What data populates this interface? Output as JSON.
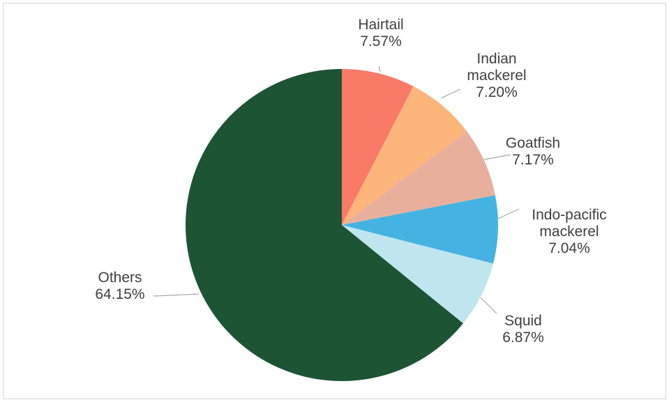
{
  "chart_data": {
    "type": "pie",
    "title": "",
    "start_angle_deg": 0,
    "direction": "clockwise",
    "slices": [
      {
        "label": [
          "Hairtail"
        ],
        "value": 7.57,
        "value_text": "7.57%",
        "color": "#f97a66"
      },
      {
        "label": [
          "Indian",
          "mackerel"
        ],
        "value": 7.2,
        "value_text": "7.20%",
        "color": "#fcb57a"
      },
      {
        "label": [
          "Goatfish"
        ],
        "value": 7.17,
        "value_text": "7.17%",
        "color": "#e8b09c"
      },
      {
        "label": [
          "Indo-pacific",
          "mackerel"
        ],
        "value": 7.04,
        "value_text": "7.04%",
        "color": "#44b3e2"
      },
      {
        "label": [
          "Squid"
        ],
        "value": 6.87,
        "value_text": "6.87%",
        "color": "#bfe6ee"
      },
      {
        "label": [
          "Others"
        ],
        "value": 64.15,
        "value_text": "64.15%",
        "color": "#1c5434"
      }
    ]
  }
}
